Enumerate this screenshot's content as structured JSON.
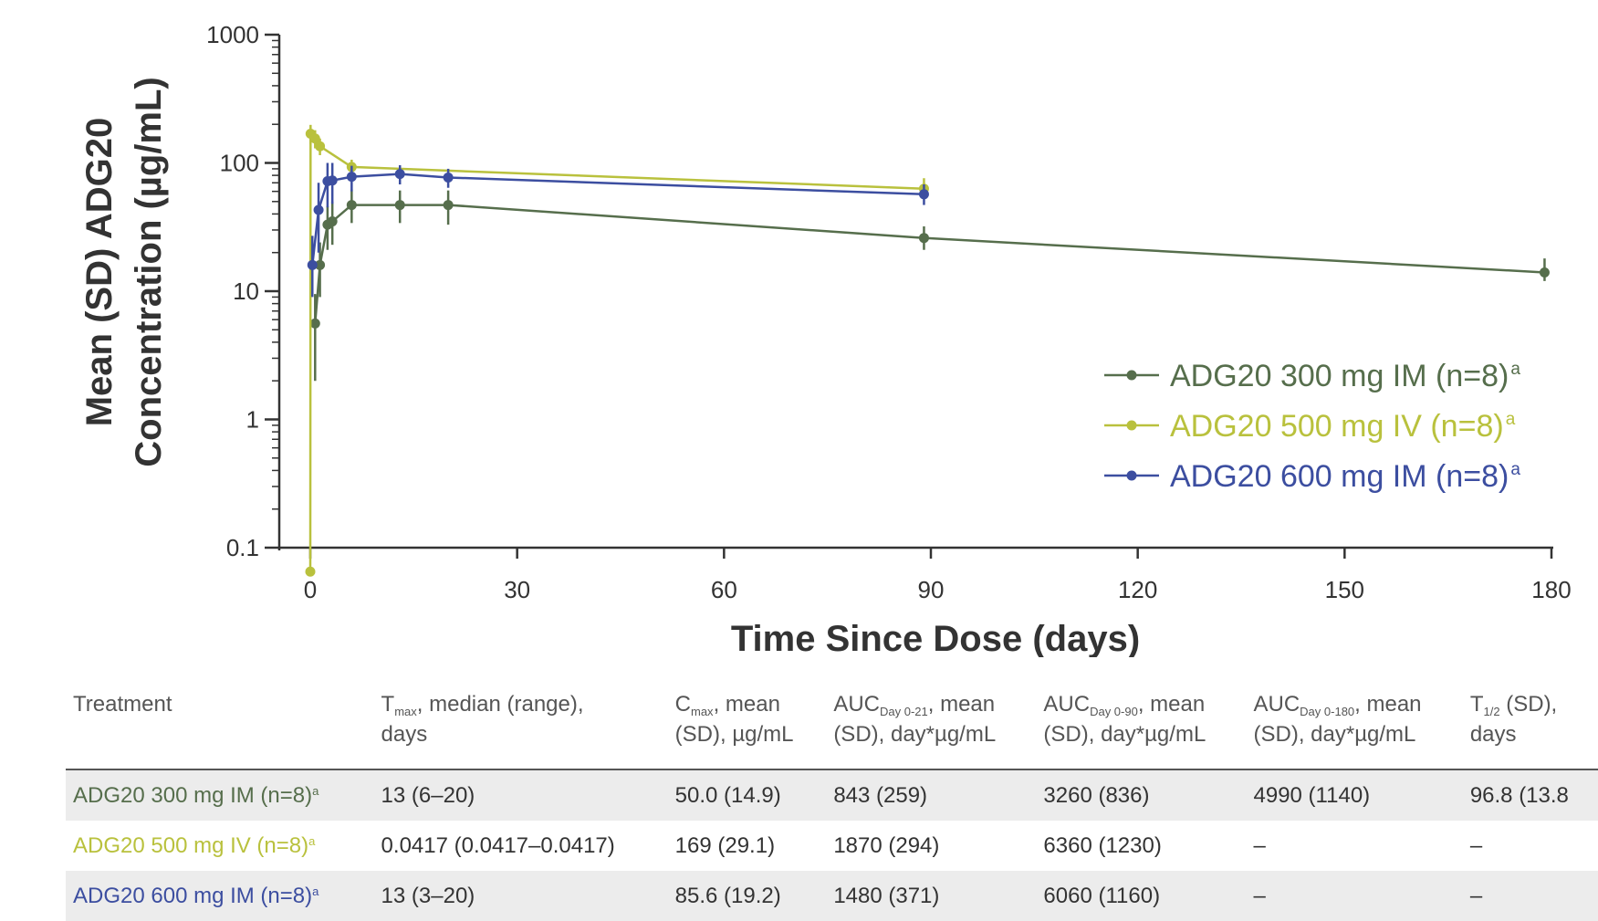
{
  "chart_data": {
    "type": "line",
    "title": "",
    "xlabel": "Time Since Dose (days)",
    "ylabel_line1": "Mean (SD) ADG20",
    "ylabel_line2": "Concentration (µg/mL)",
    "x_ticks": [
      0,
      30,
      60,
      90,
      120,
      150,
      180
    ],
    "y_ticks": [
      0.1,
      1,
      10,
      100,
      1000
    ],
    "y_tick_labels": [
      "0.1",
      "1",
      "10",
      "100",
      "1000"
    ],
    "xlim": [
      0,
      180
    ],
    "ylim": [
      0.1,
      1000
    ],
    "y_scale": "log",
    "legend_position": "right",
    "series": [
      {
        "name": "ADG20 300 mg IM (n=8)",
        "name_sup": "a",
        "color": "#566e4c",
        "points": [
          {
            "x": 0.7,
            "y": 5.6,
            "lo": 2.0,
            "hi": 9.5
          },
          {
            "x": 1.4,
            "y": 16,
            "lo": 9,
            "hi": 24
          },
          {
            "x": 2.5,
            "y": 33,
            "lo": 21,
            "hi": 46
          },
          {
            "x": 3.2,
            "y": 35,
            "lo": 23,
            "hi": 50
          },
          {
            "x": 6,
            "y": 47,
            "lo": 34,
            "hi": 62
          },
          {
            "x": 13,
            "y": 47,
            "lo": 34,
            "hi": 61
          },
          {
            "x": 20,
            "y": 47,
            "lo": 33,
            "hi": 61
          },
          {
            "x": 89,
            "y": 26,
            "lo": 21,
            "hi": 32
          },
          {
            "x": 179,
            "y": 14,
            "lo": 12,
            "hi": 18
          }
        ]
      },
      {
        "name": "ADG20 500 mg IV (n=8)",
        "name_sup": "a",
        "color": "#b9c13d",
        "points": [
          {
            "x": 0,
            "y": 0.065,
            "lo": 0.065,
            "hi": 0.065
          },
          {
            "x": 0.04,
            "y": 169,
            "lo": 140,
            "hi": 198
          },
          {
            "x": 0.7,
            "y": 155,
            "lo": 130,
            "hi": 180
          },
          {
            "x": 1.4,
            "y": 135,
            "lo": 115,
            "hi": 155
          },
          {
            "x": 6,
            "y": 93,
            "lo": 80,
            "hi": 106
          },
          {
            "x": 89,
            "y": 63,
            "lo": 52,
            "hi": 76
          }
        ]
      },
      {
        "name": "ADG20 600 mg IM (n=8)",
        "name_sup": "a",
        "color": "#3c4ea0",
        "points": [
          {
            "x": 0.3,
            "y": 16,
            "lo": 9,
            "hi": 27
          },
          {
            "x": 1.2,
            "y": 43,
            "lo": 20,
            "hi": 70
          },
          {
            "x": 2.5,
            "y": 72,
            "lo": 45,
            "hi": 100
          },
          {
            "x": 3.2,
            "y": 73,
            "lo": 48,
            "hi": 100
          },
          {
            "x": 6,
            "y": 78,
            "lo": 60,
            "hi": 95
          },
          {
            "x": 13,
            "y": 82,
            "lo": 68,
            "hi": 96
          },
          {
            "x": 20,
            "y": 77,
            "lo": 64,
            "hi": 90
          },
          {
            "x": 89,
            "y": 57,
            "lo": 47,
            "hi": 68
          }
        ]
      }
    ]
  },
  "table": {
    "headers": [
      {
        "pre": "Treatment",
        "sub": "",
        "post": "",
        "line2": ""
      },
      {
        "pre": "T",
        "sub": "max",
        "post": ", median (range),",
        "line2": "days"
      },
      {
        "pre": "C",
        "sub": "max",
        "post": ", mean",
        "line2": "(SD), µg/mL"
      },
      {
        "pre": "AUC",
        "sub": "Day 0-21",
        "post": ", mean",
        "line2": "(SD), day*µg/mL"
      },
      {
        "pre": "AUC",
        "sub": "Day 0-90",
        "post": ", mean",
        "line2": "(SD), day*µg/mL"
      },
      {
        "pre": "AUC",
        "sub": "Day 0-180",
        "post": ", mean",
        "line2": "(SD), day*µg/mL"
      },
      {
        "pre": "T",
        "sub": "1/2",
        "post": " (SD),",
        "line2": "days"
      }
    ],
    "rows": [
      {
        "treatment": "ADG20 300 mg IM (n=8)",
        "sup": "a",
        "color": "#566e4c",
        "tmax": "13 (6–20)",
        "cmax": "50.0 (14.9)",
        "auc21": "843 (259)",
        "auc90": "3260 (836)",
        "auc180": "4990 (1140)",
        "thalf": "96.8 (13.8"
      },
      {
        "treatment": "ADG20 500 mg IV (n=8)",
        "sup": "a",
        "color": "#b9c13d",
        "tmax": "0.0417 (0.0417–0.0417)",
        "cmax": "169 (29.1)",
        "auc21": "1870 (294)",
        "auc90": "6360 (1230)",
        "auc180": "–",
        "thalf": "–"
      },
      {
        "treatment": "ADG20 600 mg IM (n=8)",
        "sup": "a",
        "color": "#3c4ea0",
        "tmax": "13 (3–20)",
        "cmax": "85.6 (19.2)",
        "auc21": "1480 (371)",
        "auc90": "6060 (1160)",
        "auc180": "–",
        "thalf": "–"
      }
    ]
  }
}
